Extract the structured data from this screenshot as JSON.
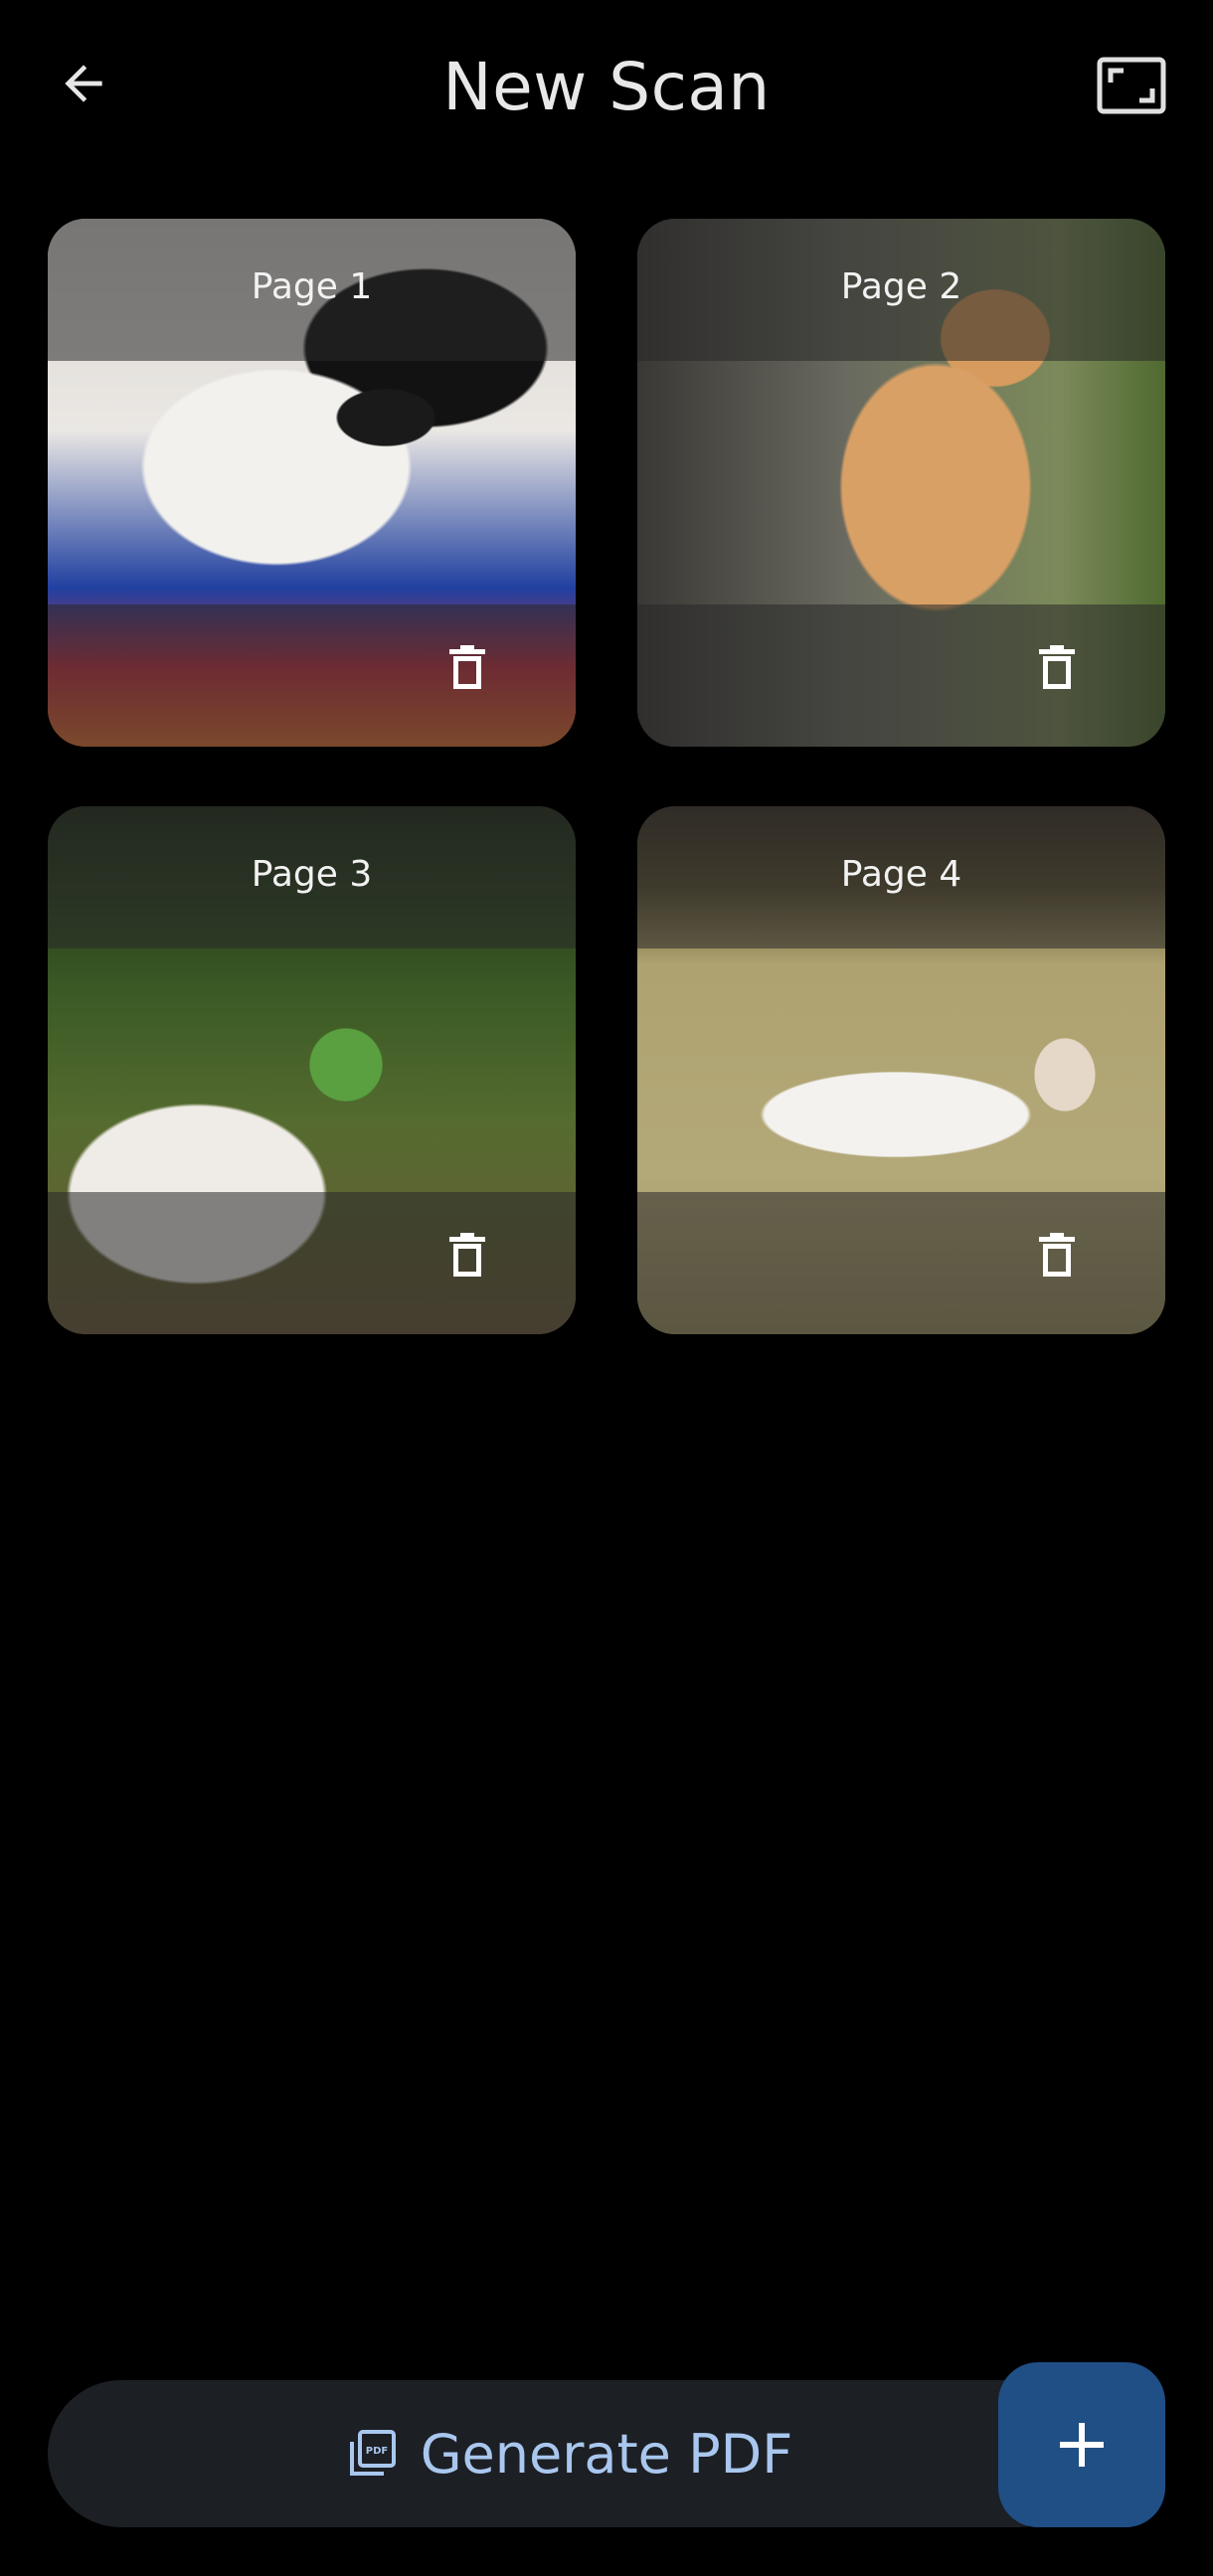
{
  "header": {
    "title": "New Scan",
    "back_icon": "arrow-left-icon",
    "fullscreen_icon": "fullscreen-icon"
  },
  "pages": [
    {
      "label": "Page 1",
      "delete_icon": "trash-icon"
    },
    {
      "label": "Page 2",
      "delete_icon": "trash-icon"
    },
    {
      "label": "Page 3",
      "delete_icon": "trash-icon"
    },
    {
      "label": "Page 4",
      "delete_icon": "trash-icon"
    }
  ],
  "actions": {
    "generate_label": "Generate PDF",
    "generate_icon": "pdf-icon",
    "add_icon": "plus-icon"
  },
  "colors": {
    "background": "#000000",
    "bar": "#1c1f24",
    "accent_text": "#a9c7ee",
    "fab": "#1f4f85"
  }
}
